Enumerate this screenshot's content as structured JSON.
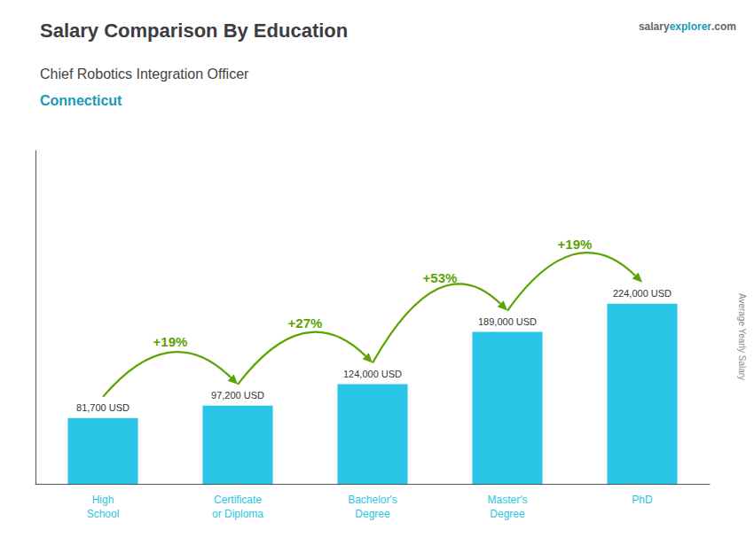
{
  "chart_data": {
    "type": "bar",
    "title": "Salary Comparison By Education",
    "subtitle": [
      "Chief Robotics Integration Officer",
      "Connecticut"
    ],
    "source": [
      "salary",
      "explorer",
      ".com"
    ],
    "ylabel": "Average Yearly Salary",
    "categories": [
      "High\nSchool",
      "Certificate\nor Diploma",
      "Bachelor's\nDegree",
      "Master's\nDegree",
      "PhD"
    ],
    "values": [
      81700,
      97200,
      124000,
      189000,
      224000
    ],
    "value_labels": [
      "81,700 USD",
      "97,200 USD",
      "124,000 USD",
      "189,000 USD",
      "224,000 USD"
    ],
    "annotations": [
      "+19%",
      "+27%",
      "+53%",
      "+19%"
    ],
    "color": "#29c5e6",
    "ylim": [
      0,
      414400
    ],
    "data_labels": true,
    "tick_labels": "x",
    "grid": false
  }
}
